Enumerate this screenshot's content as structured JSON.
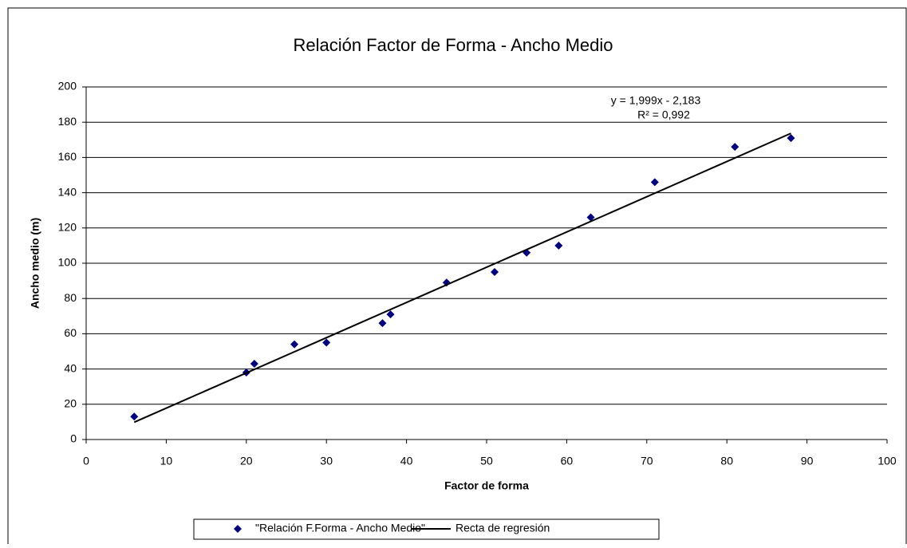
{
  "chart_data": {
    "type": "scatter",
    "title": "Relación Factor de Forma - Ancho Medio",
    "x_label": "Factor de forma",
    "y_label": "Ancho medio (m)",
    "annotations": [
      "y = 1,999x - 2,183",
      "R² = 0,992"
    ],
    "xlim": [
      0,
      100
    ],
    "xticks": [
      0,
      10,
      20,
      30,
      40,
      50,
      60,
      70,
      80,
      90,
      100
    ],
    "ylim": [
      0,
      200
    ],
    "yticks": [
      0,
      20,
      40,
      60,
      80,
      100,
      120,
      140,
      160,
      180,
      200
    ],
    "grid": true,
    "series": [
      {
        "name": "\"Relación F.Forma - Ancho Medio\"",
        "color": "#000080",
        "marker": "diamond",
        "x": [
          6,
          20,
          21,
          26,
          30,
          37,
          38,
          45,
          51,
          55,
          59,
          63,
          71,
          81,
          88
        ],
        "values": [
          13,
          38,
          43,
          54,
          55,
          66,
          71,
          89,
          95,
          106,
          110,
          126,
          146,
          166,
          171
        ]
      },
      {
        "name": "Recta de regresión",
        "color": "#000000",
        "marker": "line",
        "x": [
          6,
          88
        ],
        "values": [
          9.8,
          173.7
        ]
      }
    ]
  }
}
